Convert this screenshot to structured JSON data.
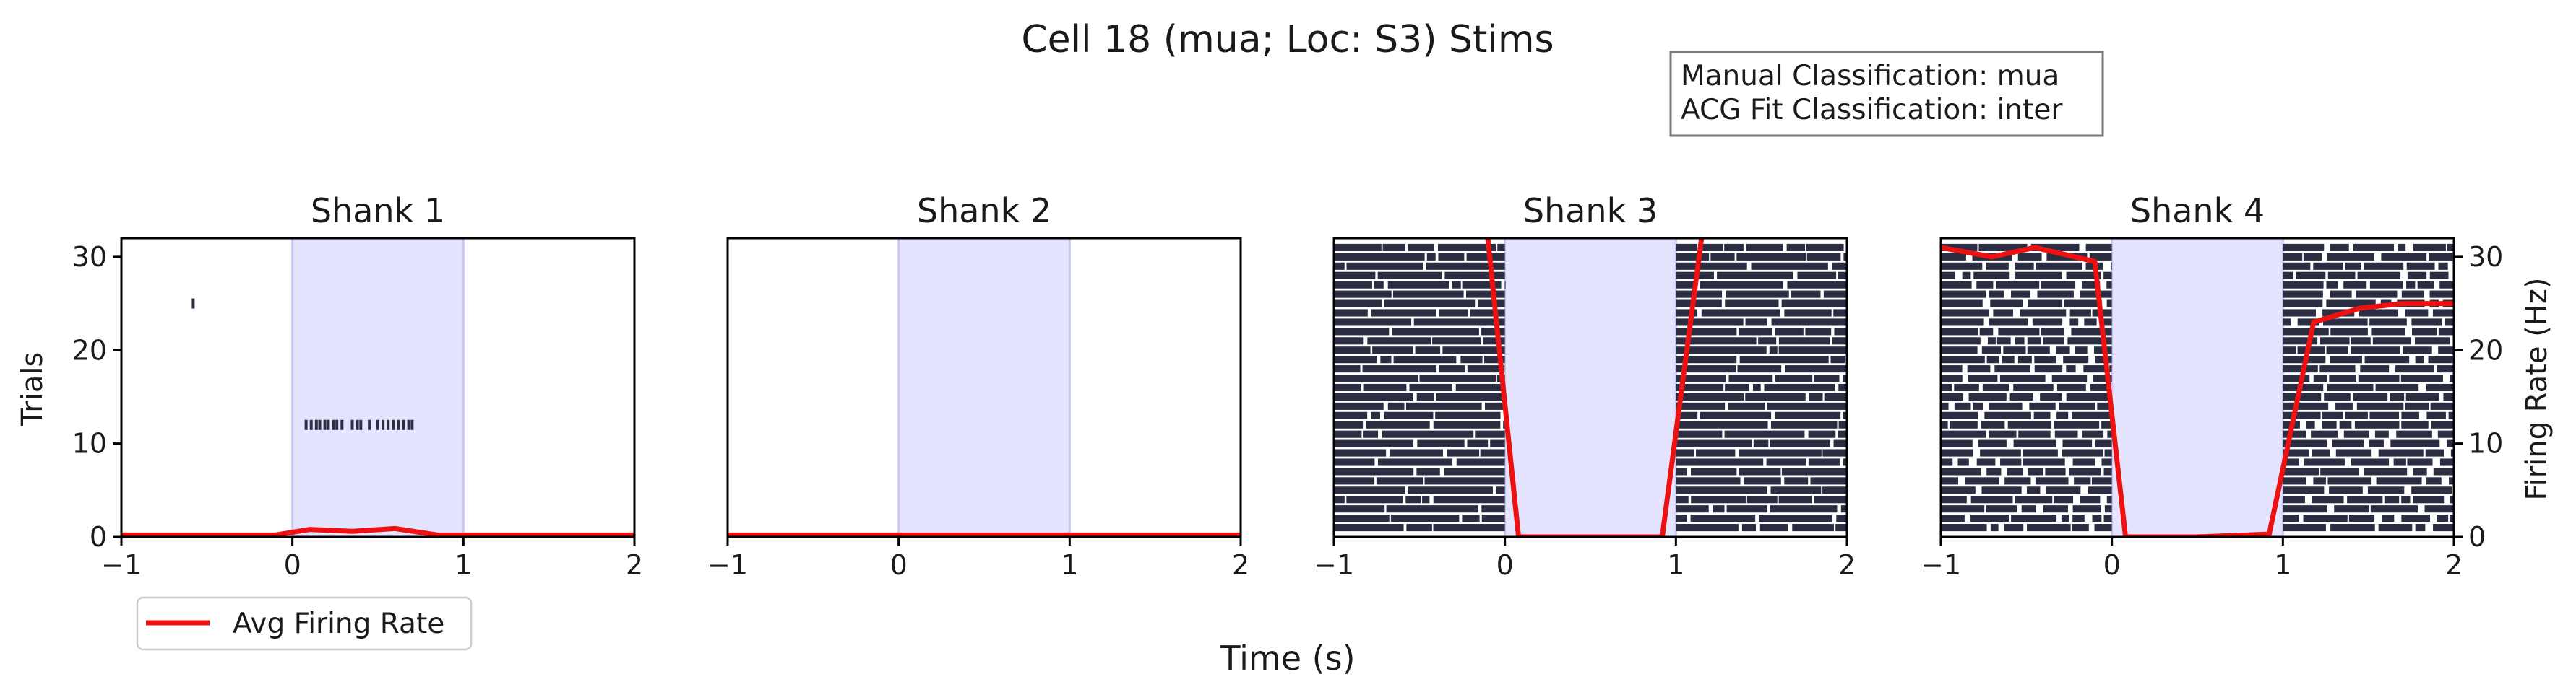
{
  "figure": {
    "title": "Cell 18 (mua; Loc: S3) Stims",
    "xlabel": "Time (s)",
    "left_ylabel": "Trials",
    "right_ylabel": "Firing Rate (Hz)"
  },
  "info_box": {
    "line1": "Manual Classification: mua",
    "line2": "ACG Fit Classification: inter"
  },
  "legend": {
    "label": "Avg Firing Rate",
    "color": "#ee1111"
  },
  "colors": {
    "raster": "#2b2d42",
    "stim": "#e4e4ff",
    "stim_edge": "#c8c8f4",
    "rate": "#ee1111"
  },
  "chart_data": [
    {
      "type": "raster",
      "title": "Shank 1",
      "xlim": [
        -1,
        2
      ],
      "ylim": [
        0,
        32
      ],
      "xticks": [
        "−1",
        "0",
        "1",
        "2"
      ],
      "yticks": [
        "0",
        "10",
        "20",
        "30"
      ],
      "stim": [
        0,
        1
      ],
      "density": 0,
      "sparse_spikes": [
        {
          "trial": 25,
          "times": [
            -0.58
          ]
        },
        {
          "trial": 12,
          "times": [
            0.08,
            0.11,
            0.14,
            0.16,
            0.19,
            0.21,
            0.24,
            0.26,
            0.29,
            0.35,
            0.38,
            0.4,
            0.45,
            0.5,
            0.53,
            0.56,
            0.59,
            0.62,
            0.65,
            0.68,
            0.7
          ]
        }
      ],
      "rate": {
        "x": [
          -1,
          -0.7,
          -0.4,
          -0.1,
          0.1,
          0.35,
          0.6,
          0.85,
          1.1,
          1.4,
          1.7,
          2.0
        ],
        "y": [
          0.2,
          0.2,
          0.2,
          0.2,
          0.8,
          0.6,
          0.9,
          0.2,
          0.2,
          0.2,
          0.2,
          0.2
        ]
      }
    },
    {
      "type": "raster",
      "title": "Shank 2",
      "xlim": [
        -1,
        2
      ],
      "ylim": [
        0,
        32
      ],
      "xticks": [
        "−1",
        "0",
        "1",
        "2"
      ],
      "stim": [
        0,
        1
      ],
      "density": 0,
      "sparse_spikes": [],
      "rate": {
        "x": [
          -1,
          2
        ],
        "y": [
          0.2,
          0.2
        ]
      }
    },
    {
      "type": "raster",
      "title": "Shank 3",
      "xlim": [
        -1,
        2
      ],
      "ylim": [
        0,
        32
      ],
      "xticks": [
        "−1",
        "0",
        "1",
        "2"
      ],
      "stim": [
        0,
        1
      ],
      "density": 0.97,
      "trials": 31,
      "sparse_spikes": [],
      "rate": {
        "x": [
          -0.1,
          0.08,
          0.92,
          1.15
        ],
        "y": [
          32,
          0,
          0,
          32
        ]
      }
    },
    {
      "type": "raster",
      "title": "Shank 4",
      "xlim": [
        -1,
        2
      ],
      "ylim": [
        0,
        32
      ],
      "xticks": [
        "−1",
        "0",
        "1",
        "2"
      ],
      "right_yticks": [
        "0",
        "10",
        "20",
        "30"
      ],
      "stim": [
        0,
        1
      ],
      "density": 0.88,
      "trials": 31,
      "sparse_spikes": [],
      "rate": {
        "x": [
          -1,
          -0.7,
          -0.45,
          -0.1,
          0.08,
          0.5,
          0.92,
          1.18,
          1.45,
          1.7,
          2.0
        ],
        "y": [
          31,
          30,
          31,
          29.5,
          0,
          0,
          0.3,
          23,
          24.5,
          25,
          25
        ]
      }
    }
  ]
}
